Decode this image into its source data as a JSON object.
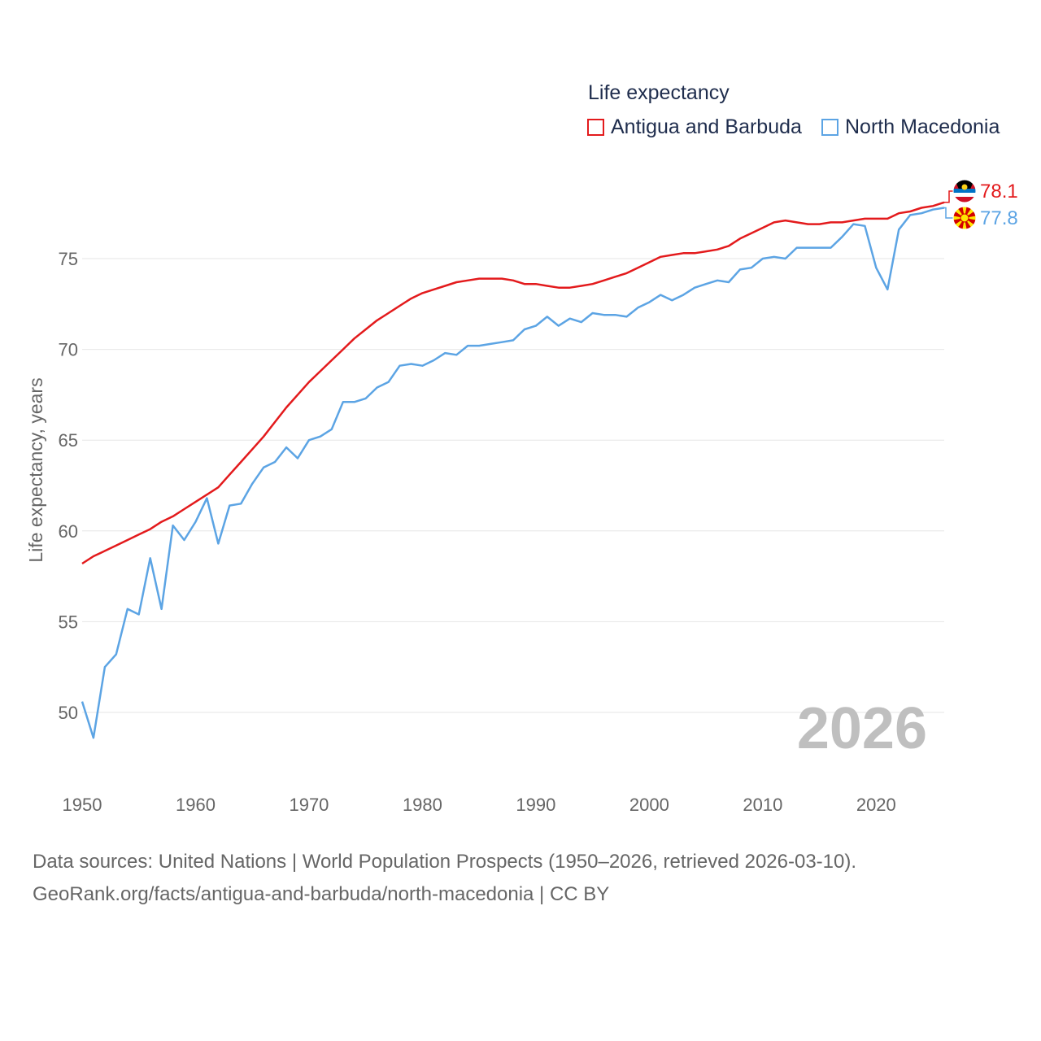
{
  "legend": {
    "title": "Life expectancy",
    "items": [
      {
        "label": "Antigua and Barbuda",
        "color": "#e31a1c"
      },
      {
        "label": "North Macedonia",
        "color": "#5ca4e4"
      }
    ]
  },
  "year_label": "2026",
  "end_labels": {
    "antigua": "78.1",
    "macedonia": "77.8"
  },
  "flags": {
    "antigua": "antigua-and-barbuda-flag-icon",
    "macedonia": "north-macedonia-flag-icon"
  },
  "source": {
    "line1": "Data sources: United Nations | World Population Prospects (1950–2026, retrieved 2026-03-10).",
    "line2": "GeoRank.org/facts/antigua-and-barbuda/north-macedonia | CC BY"
  },
  "chart_data": {
    "type": "line",
    "title": "Life expectancy",
    "xlabel": "",
    "ylabel": "Life expectancy, years",
    "xlim": [
      1950,
      2026
    ],
    "ylim": [
      47,
      79
    ],
    "x_ticks": [
      1950,
      1960,
      1970,
      1980,
      1990,
      2000,
      2010,
      2020
    ],
    "y_ticks": [
      50,
      55,
      60,
      65,
      70,
      75
    ],
    "grid": true,
    "x": [
      1950,
      1951,
      1952,
      1953,
      1954,
      1955,
      1956,
      1957,
      1958,
      1959,
      1960,
      1961,
      1962,
      1963,
      1964,
      1965,
      1966,
      1967,
      1968,
      1969,
      1970,
      1971,
      1972,
      1973,
      1974,
      1975,
      1976,
      1977,
      1978,
      1979,
      1980,
      1981,
      1982,
      1983,
      1984,
      1985,
      1986,
      1987,
      1988,
      1989,
      1990,
      1991,
      1992,
      1993,
      1994,
      1995,
      1996,
      1997,
      1998,
      1999,
      2000,
      2001,
      2002,
      2003,
      2004,
      2005,
      2006,
      2007,
      2008,
      2009,
      2010,
      2011,
      2012,
      2013,
      2014,
      2015,
      2016,
      2017,
      2018,
      2019,
      2020,
      2021,
      2022,
      2023,
      2024,
      2025,
      2026
    ],
    "series": [
      {
        "name": "Antigua and Barbuda",
        "color": "#e31a1c",
        "values": [
          58.2,
          58.6,
          58.9,
          59.2,
          59.5,
          59.8,
          60.1,
          60.5,
          60.8,
          61.2,
          61.6,
          62.0,
          62.4,
          63.1,
          63.8,
          64.5,
          65.2,
          66.0,
          66.8,
          67.5,
          68.2,
          68.8,
          69.4,
          70.0,
          70.6,
          71.1,
          71.6,
          72.0,
          72.4,
          72.8,
          73.1,
          73.3,
          73.5,
          73.7,
          73.8,
          73.9,
          73.9,
          73.9,
          73.8,
          73.6,
          73.6,
          73.5,
          73.4,
          73.4,
          73.5,
          73.6,
          73.8,
          74.0,
          74.2,
          74.5,
          74.8,
          75.1,
          75.2,
          75.3,
          75.3,
          75.4,
          75.5,
          75.7,
          76.1,
          76.4,
          76.7,
          77.0,
          77.1,
          77.0,
          76.9,
          76.9,
          77.0,
          77.0,
          77.1,
          77.2,
          77.2,
          77.2,
          77.5,
          77.6,
          77.8,
          77.9,
          78.1
        ]
      },
      {
        "name": "North Macedonia",
        "color": "#5ca4e4",
        "values": [
          50.6,
          48.6,
          52.5,
          53.2,
          55.7,
          55.4,
          58.5,
          55.7,
          60.3,
          59.5,
          60.5,
          61.8,
          59.3,
          61.4,
          61.5,
          62.6,
          63.5,
          63.8,
          64.6,
          64.0,
          65.0,
          65.2,
          65.6,
          67.1,
          67.1,
          67.3,
          67.9,
          68.2,
          69.1,
          69.2,
          69.1,
          69.4,
          69.8,
          69.7,
          70.2,
          70.2,
          70.3,
          70.4,
          70.5,
          71.1,
          71.3,
          71.8,
          71.3,
          71.7,
          71.5,
          72.0,
          71.9,
          71.9,
          71.8,
          72.3,
          72.6,
          73.0,
          72.7,
          73.0,
          73.4,
          73.6,
          73.8,
          73.7,
          74.4,
          74.5,
          75.0,
          75.1,
          75.0,
          75.6,
          75.6,
          75.6,
          75.6,
          76.2,
          76.9,
          76.8,
          74.5,
          73.3,
          76.6,
          77.4,
          77.5,
          77.7,
          77.8
        ]
      }
    ]
  }
}
